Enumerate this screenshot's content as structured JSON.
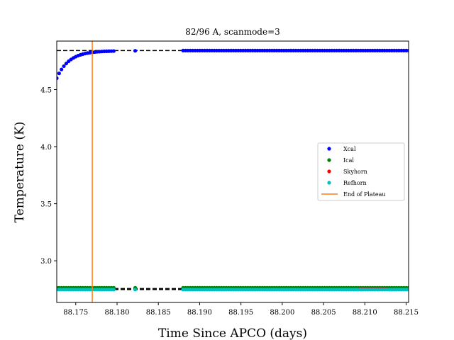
{
  "chart_data": {
    "type": "scatter",
    "title": "82/96 A, scanmode=3",
    "xlabel": "Time Since APCO (days)",
    "ylabel": "Temperature (K)",
    "xlim": [
      88.1727,
      88.2153
    ],
    "ylim": [
      2.635,
      4.925
    ],
    "x_ticks": [
      "88.175",
      "88.180",
      "88.185",
      "88.190",
      "88.195",
      "88.200",
      "88.205",
      "88.210",
      "88.215"
    ],
    "x_tick_values": [
      88.175,
      88.18,
      88.185,
      88.19,
      88.195,
      88.2,
      88.205,
      88.21,
      88.215
    ],
    "y_ticks": [
      "3.0",
      "3.5",
      "4.0",
      "4.5"
    ],
    "y_tick_values": [
      3.0,
      3.5,
      4.0,
      4.5
    ],
    "grid": false,
    "legend_position": "center-right",
    "legend": [
      "Xcal",
      "Ical",
      "Skyhorn",
      "Refhorn",
      "End of Plateau"
    ],
    "colors": {
      "Xcal": "#0000ff",
      "Ical": "#008000",
      "Skyhorn": "#ff0000",
      "Refhorn": "#00bfbf",
      "End of Plateau": "#ff7f0e",
      "plateau_lines": "#000000"
    },
    "series": [
      {
        "name": "Xcal",
        "segments": [
          {
            "x_start": 88.1727,
            "x_end": 88.1796,
            "n": 25,
            "model": "exp_rise",
            "y_start": 4.6,
            "y_end": 4.84,
            "tau": 0.0015
          },
          {
            "x_start": 88.1822,
            "x_end": 88.1822,
            "n": 1,
            "model": "const",
            "y": 4.84
          },
          {
            "x_start": 88.188,
            "x_end": 88.2153,
            "n": 95,
            "model": "const",
            "y": 4.842
          }
        ]
      },
      {
        "name": "Ical",
        "segments": [
          {
            "x_start": 88.1727,
            "x_end": 88.1796,
            "n": 25,
            "model": "const",
            "y": 2.763
          },
          {
            "x_start": 88.1822,
            "x_end": 88.1822,
            "n": 1,
            "model": "const",
            "y": 2.763
          },
          {
            "x_start": 88.188,
            "x_end": 88.2153,
            "n": 95,
            "model": "const",
            "y": 2.763
          }
        ]
      },
      {
        "name": "Skyhorn",
        "segments": [
          {
            "x_start": 88.2095,
            "x_end": 88.2125,
            "n": 8,
            "model": "const",
            "y": 2.756
          }
        ]
      },
      {
        "name": "Refhorn",
        "segments": [
          {
            "x_start": 88.1727,
            "x_end": 88.1796,
            "n": 25,
            "model": "const",
            "y": 2.748
          },
          {
            "x_start": 88.1822,
            "x_end": 88.1822,
            "n": 1,
            "model": "const",
            "y": 2.748
          },
          {
            "x_start": 88.188,
            "x_end": 88.2153,
            "n": 95,
            "model": "const",
            "y": 2.748
          }
        ]
      }
    ],
    "end_of_plateau_x": 88.177,
    "plateau_lines": [
      {
        "y": 4.842,
        "x_start": 88.1727,
        "x_end": 88.2153
      },
      {
        "y": 2.757,
        "x_start": 88.1727,
        "x_end": 88.2153
      },
      {
        "y": 2.748,
        "x_start": 88.1727,
        "x_end": 88.2153
      }
    ]
  }
}
